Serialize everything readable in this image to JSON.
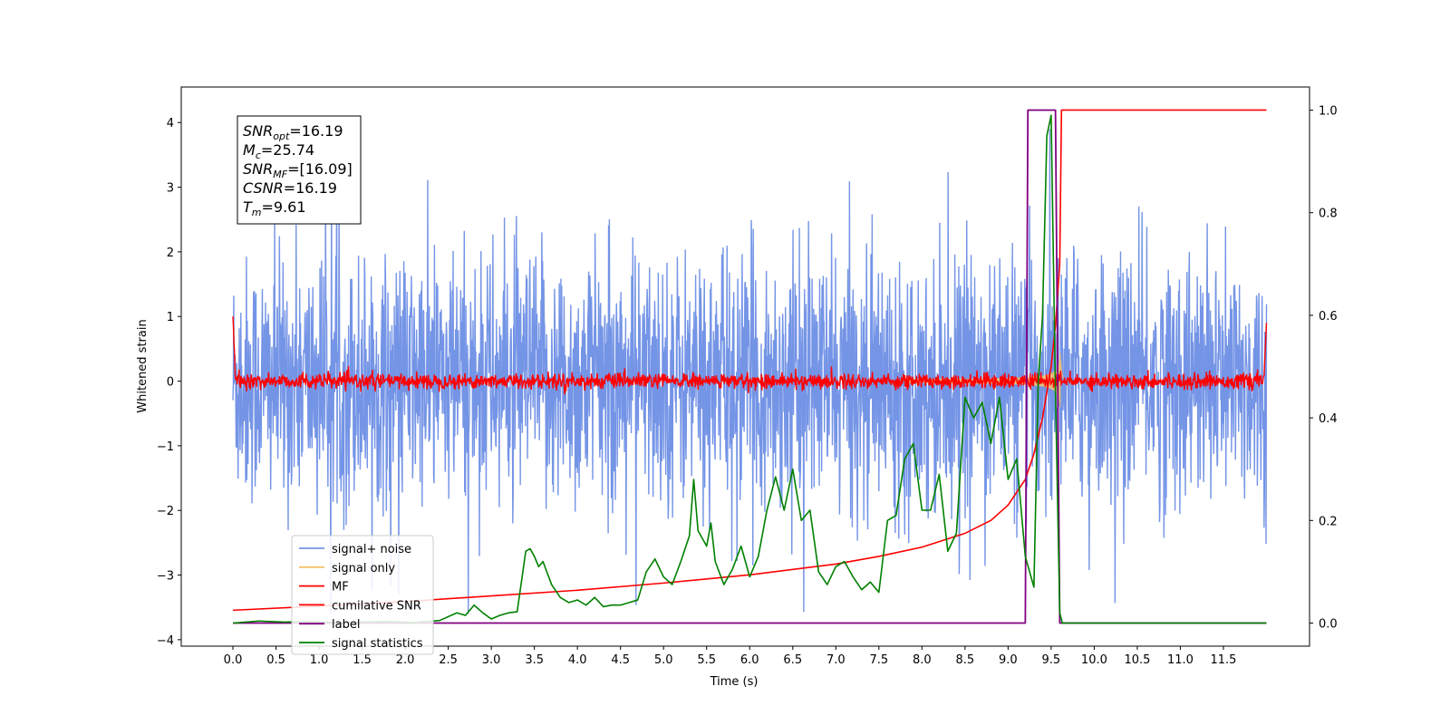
{
  "chart_data": {
    "type": "line",
    "title": "",
    "xlabel": "Time (s)",
    "ylabel": "Whitened strain",
    "xlim": [
      -0.6,
      12.5
    ],
    "ylim": [
      -4.1,
      4.55
    ],
    "ylim_right": [
      -0.045,
      1.045
    ],
    "grid": false,
    "legend_position": "lower-left",
    "x_ticks": [
      "0.0",
      "0.5",
      "1.0",
      "1.5",
      "2.0",
      "2.5",
      "3.0",
      "3.5",
      "4.0",
      "4.5",
      "5.0",
      "5.5",
      "6.0",
      "6.5",
      "7.0",
      "7.5",
      "8.0",
      "8.5",
      "9.0",
      "9.5",
      "10.0",
      "10.5",
      "11.0",
      "11.5"
    ],
    "x_tick_values": [
      0.0,
      0.5,
      1.0,
      1.5,
      2.0,
      2.5,
      3.0,
      3.5,
      4.0,
      4.5,
      5.0,
      5.5,
      6.0,
      6.5,
      7.0,
      7.5,
      8.0,
      8.5,
      9.0,
      9.5,
      10.0,
      10.5,
      11.0,
      11.5
    ],
    "y_ticks_left": [
      "4",
      "3",
      "2",
      "1",
      "0",
      "−1",
      "−2",
      "−3",
      "−4"
    ],
    "y_tick_values_left": [
      4,
      3,
      2,
      1,
      0,
      -1,
      -2,
      -3,
      -4
    ],
    "y_ticks_right": [
      "1.0",
      "0.8",
      "0.6",
      "0.4",
      "0.2",
      "0.0"
    ],
    "y_tick_values_right": [
      1.0,
      0.8,
      0.6,
      0.4,
      0.2,
      0.0
    ],
    "info_box": [
      {
        "var": "SNR",
        "sub": "opt",
        "value": "=16.19"
      },
      {
        "var": "M",
        "sub": "c",
        "value": "=25.74"
      },
      {
        "var": "SNR",
        "sub": "MF",
        "value": "=[16.09]"
      },
      {
        "var": "CSNR",
        "sub": "",
        "value": "=16.19"
      },
      {
        "var": "T",
        "sub": "m",
        "value": "=9.61"
      }
    ],
    "series": [
      {
        "name": "signal+ noise",
        "color": "#7494e6",
        "axis": "left",
        "description_kind": "noise",
        "x_range": [
          0.0,
          12.0
        ],
        "amplitude_std": 0.95,
        "mean": 0.0
      },
      {
        "name": "signal only",
        "color": "#f5c26b",
        "axis": "left",
        "description_kind": "chirp",
        "merger_time": 9.61,
        "peak_amplitude": 0.55
      },
      {
        "name": "MF",
        "color": "#ff0000",
        "axis": "left",
        "description_kind": "mf",
        "edge_values": [
          1.0,
          0.9
        ],
        "jitter": 0.06
      },
      {
        "name": "cumilative SNR",
        "color": "#ff0000",
        "axis": "right",
        "x": [
          0.0,
          1.0,
          2.0,
          3.0,
          4.0,
          5.0,
          6.0,
          7.0,
          7.5,
          8.0,
          8.5,
          8.8,
          9.0,
          9.2,
          9.3,
          9.4,
          9.5,
          9.55,
          9.6,
          9.62,
          12.0
        ],
        "y": [
          0.025,
          0.033,
          0.042,
          0.053,
          0.064,
          0.078,
          0.094,
          0.115,
          0.13,
          0.148,
          0.175,
          0.2,
          0.23,
          0.28,
          0.33,
          0.4,
          0.5,
          0.58,
          0.7,
          1.0,
          1.0
        ]
      },
      {
        "name": "label",
        "color": "#800080",
        "axis": "right",
        "x": [
          0.0,
          9.2,
          9.23,
          9.55,
          9.6,
          12.0
        ],
        "y": [
          0.0,
          0.0,
          1.0,
          1.0,
          0.0,
          0.0
        ]
      },
      {
        "name": "signal statistics",
        "color": "#008000",
        "axis": "right",
        "x": [
          0.0,
          0.3,
          0.6,
          0.9,
          1.2,
          1.5,
          1.8,
          2.1,
          2.4,
          2.6,
          2.7,
          2.8,
          2.9,
          3.0,
          3.1,
          3.2,
          3.3,
          3.4,
          3.45,
          3.5,
          3.55,
          3.6,
          3.7,
          3.8,
          3.9,
          4.0,
          4.1,
          4.2,
          4.3,
          4.4,
          4.5,
          4.6,
          4.7,
          4.8,
          4.9,
          5.0,
          5.1,
          5.2,
          5.3,
          5.35,
          5.4,
          5.5,
          5.55,
          5.6,
          5.7,
          5.8,
          5.9,
          6.0,
          6.1,
          6.2,
          6.3,
          6.4,
          6.5,
          6.6,
          6.7,
          6.8,
          6.9,
          7.0,
          7.1,
          7.2,
          7.3,
          7.4,
          7.5,
          7.6,
          7.7,
          7.8,
          7.9,
          8.0,
          8.1,
          8.2,
          8.3,
          8.4,
          8.5,
          8.6,
          8.7,
          8.8,
          8.9,
          9.0,
          9.1,
          9.2,
          9.3,
          9.35,
          9.4,
          9.45,
          9.5,
          9.55,
          9.6,
          9.63,
          9.65,
          9.7,
          12.0
        ],
        "y": [
          0.0,
          0.004,
          0.002,
          0.003,
          0.001,
          0.002,
          0.003,
          0.001,
          0.005,
          0.02,
          0.015,
          0.035,
          0.02,
          0.008,
          0.015,
          0.02,
          0.022,
          0.14,
          0.145,
          0.13,
          0.11,
          0.12,
          0.075,
          0.05,
          0.04,
          0.045,
          0.035,
          0.05,
          0.032,
          0.035,
          0.035,
          0.04,
          0.045,
          0.1,
          0.125,
          0.09,
          0.075,
          0.12,
          0.17,
          0.28,
          0.18,
          0.15,
          0.195,
          0.12,
          0.075,
          0.105,
          0.15,
          0.09,
          0.13,
          0.22,
          0.285,
          0.22,
          0.3,
          0.2,
          0.22,
          0.1,
          0.075,
          0.11,
          0.12,
          0.09,
          0.065,
          0.08,
          0.06,
          0.2,
          0.21,
          0.32,
          0.35,
          0.22,
          0.22,
          0.29,
          0.14,
          0.175,
          0.44,
          0.4,
          0.43,
          0.35,
          0.44,
          0.28,
          0.32,
          0.13,
          0.07,
          0.47,
          0.6,
          0.95,
          0.99,
          0.45,
          0.02,
          0.0,
          0.0,
          0.0,
          0.0
        ]
      }
    ]
  }
}
